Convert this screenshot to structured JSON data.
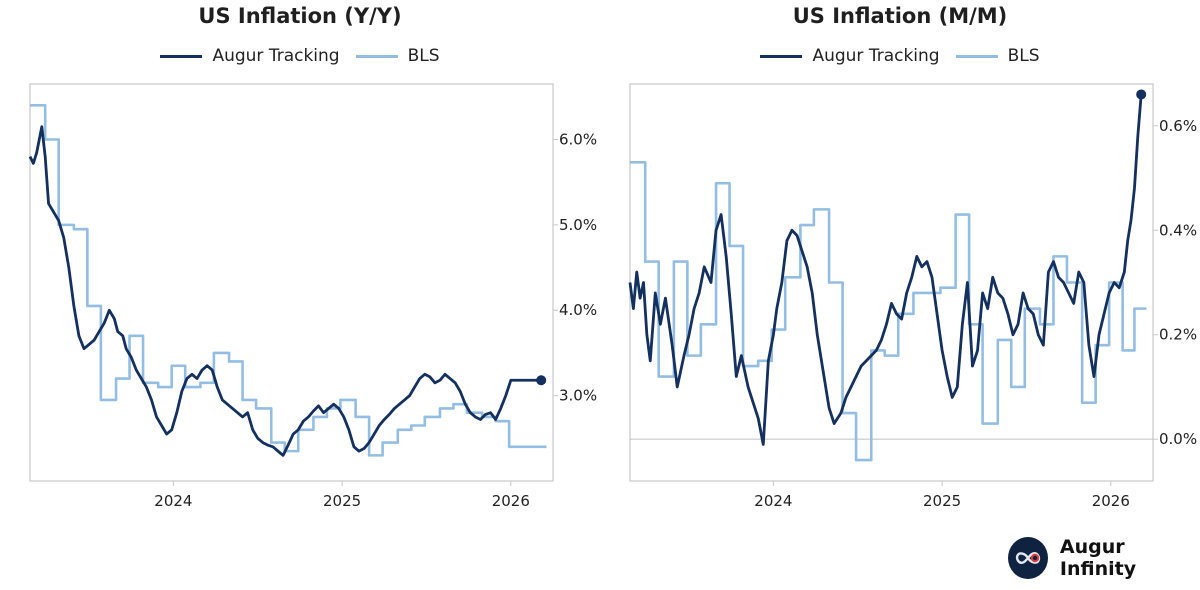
{
  "branding": {
    "name": "Augur Infinity",
    "logo": "infinity-logo-icon"
  },
  "colors": {
    "augur": "#14305e",
    "bls": "#93bde3",
    "axis": "#c8c8c8",
    "zero": "#c8c8c8"
  },
  "chart_data": [
    {
      "type": "line",
      "title": "US Inflation (Y/Y)",
      "legend": [
        "Augur Tracking",
        "BLS"
      ],
      "xlim": [
        2023.15,
        2026.25
      ],
      "ylim": [
        2.0,
        6.65
      ],
      "x_ticks": [
        2024,
        2025,
        2026
      ],
      "x_tick_labels": [
        "2024",
        "2025",
        "2026"
      ],
      "y_ticks": [
        3.0,
        4.0,
        5.0,
        6.0
      ],
      "y_tick_labels": [
        "3.0%",
        "4.0%",
        "5.0%",
        "6.0%"
      ],
      "series": [
        {
          "name": "Augur Tracking",
          "style": "line",
          "x": [
            2023.15,
            2023.17,
            2023.19,
            2023.22,
            2023.24,
            2023.26,
            2023.29,
            2023.32,
            2023.35,
            2023.38,
            2023.41,
            2023.44,
            2023.47,
            2023.5,
            2023.53,
            2023.56,
            2023.59,
            2023.62,
            2023.65,
            2023.67,
            2023.7,
            2023.72,
            2023.75,
            2023.78,
            2023.81,
            2023.84,
            2023.87,
            2023.9,
            2023.93,
            2023.96,
            2023.99,
            2024.02,
            2024.05,
            2024.08,
            2024.11,
            2024.14,
            2024.17,
            2024.2,
            2024.23,
            2024.26,
            2024.29,
            2024.32,
            2024.35,
            2024.38,
            2024.41,
            2024.44,
            2024.47,
            2024.5,
            2024.53,
            2024.56,
            2024.59,
            2024.62,
            2024.65,
            2024.68,
            2024.71,
            2024.74,
            2024.77,
            2024.8,
            2024.83,
            2024.86,
            2024.89,
            2024.92,
            2024.95,
            2024.98,
            2025.01,
            2025.04,
            2025.07,
            2025.1,
            2025.13,
            2025.16,
            2025.19,
            2025.22,
            2025.25,
            2025.28,
            2025.31,
            2025.34,
            2025.37,
            2025.4,
            2025.43,
            2025.46,
            2025.49,
            2025.52,
            2025.55,
            2025.58,
            2025.61,
            2025.64,
            2025.67,
            2025.7,
            2025.73,
            2025.76,
            2025.79,
            2025.82,
            2025.85,
            2025.88,
            2025.91,
            2025.94,
            2025.97,
            2026.0,
            2026.03,
            2026.06,
            2026.09,
            2026.12,
            2026.15,
            2026.18
          ],
          "values": [
            5.8,
            5.72,
            5.85,
            6.15,
            5.8,
            5.25,
            5.15,
            5.05,
            4.85,
            4.5,
            4.05,
            3.7,
            3.55,
            3.6,
            3.65,
            3.75,
            3.85,
            4.0,
            3.9,
            3.75,
            3.7,
            3.55,
            3.45,
            3.3,
            3.2,
            3.1,
            2.95,
            2.75,
            2.65,
            2.55,
            2.6,
            2.8,
            3.05,
            3.2,
            3.25,
            3.2,
            3.3,
            3.35,
            3.3,
            3.1,
            2.95,
            2.9,
            2.85,
            2.8,
            2.75,
            2.8,
            2.6,
            2.5,
            2.45,
            2.42,
            2.4,
            2.35,
            2.3,
            2.42,
            2.55,
            2.6,
            2.7,
            2.75,
            2.82,
            2.88,
            2.8,
            2.85,
            2.9,
            2.85,
            2.75,
            2.6,
            2.4,
            2.35,
            2.38,
            2.45,
            2.55,
            2.65,
            2.72,
            2.78,
            2.85,
            2.9,
            2.95,
            3.0,
            3.1,
            3.2,
            3.25,
            3.22,
            3.15,
            3.18,
            3.25,
            3.2,
            3.15,
            3.05,
            2.9,
            2.8,
            2.75,
            2.72,
            2.78,
            2.8,
            2.72,
            2.85,
            3.0,
            3.18,
            3.18,
            3.18,
            3.18,
            3.18,
            3.18,
            3.18
          ],
          "endpoint": [
            2026.18,
            3.18
          ]
        },
        {
          "name": "BLS",
          "style": "step",
          "x": [
            2023.15,
            2023.24,
            2023.32,
            2023.41,
            2023.49,
            2023.57,
            2023.66,
            2023.74,
            2023.82,
            2023.91,
            2023.99,
            2024.07,
            2024.16,
            2024.24,
            2024.33,
            2024.41,
            2024.49,
            2024.58,
            2024.66,
            2024.74,
            2024.83,
            2024.91,
            2024.99,
            2025.08,
            2025.16,
            2025.24,
            2025.33,
            2025.41,
            2025.49,
            2025.58,
            2025.66,
            2025.74,
            2025.83,
            2025.91,
            2025.99,
            2026.07,
            2026.14
          ],
          "values": [
            6.4,
            6.0,
            5.0,
            4.95,
            4.05,
            2.95,
            3.2,
            3.7,
            3.15,
            3.1,
            3.35,
            3.1,
            3.15,
            3.5,
            3.4,
            2.95,
            2.85,
            2.45,
            2.35,
            2.6,
            2.75,
            2.85,
            2.95,
            2.75,
            2.3,
            2.45,
            2.6,
            2.65,
            2.75,
            2.85,
            2.9,
            2.8,
            2.75,
            2.7,
            2.4,
            2.4,
            2.4
          ]
        }
      ]
    },
    {
      "type": "line",
      "title": "US Inflation (M/M)",
      "legend": [
        "Augur Tracking",
        "BLS"
      ],
      "xlim": [
        2023.15,
        2026.25
      ],
      "ylim": [
        -0.08,
        0.68
      ],
      "x_ticks": [
        2024,
        2025,
        2026
      ],
      "x_tick_labels": [
        "2024",
        "2025",
        "2026"
      ],
      "y_ticks": [
        0.0,
        0.2,
        0.4,
        0.6
      ],
      "y_tick_labels": [
        "0.0%",
        "0.2%",
        "0.4%",
        "0.6%"
      ],
      "zero_line": 0.0,
      "series": [
        {
          "name": "Augur Tracking",
          "style": "line",
          "x": [
            2023.15,
            2023.17,
            2023.19,
            2023.21,
            2023.23,
            2023.25,
            2023.27,
            2023.3,
            2023.33,
            2023.36,
            2023.4,
            2023.43,
            2023.47,
            2023.5,
            2023.53,
            2023.56,
            2023.59,
            2023.63,
            2023.66,
            2023.69,
            2023.72,
            2023.75,
            2023.78,
            2023.81,
            2023.85,
            2023.88,
            2023.91,
            2023.94,
            2023.97,
            2024.0,
            2024.02,
            2024.05,
            2024.08,
            2024.11,
            2024.14,
            2024.17,
            2024.2,
            2024.23,
            2024.26,
            2024.3,
            2024.33,
            2024.36,
            2024.4,
            2024.43,
            2024.46,
            2024.49,
            2024.52,
            2024.55,
            2024.58,
            2024.61,
            2024.64,
            2024.67,
            2024.7,
            2024.73,
            2024.76,
            2024.79,
            2024.82,
            2024.85,
            2024.88,
            2024.91,
            2024.94,
            2024.97,
            2025.0,
            2025.03,
            2025.06,
            2025.09,
            2025.12,
            2025.15,
            2025.18,
            2025.21,
            2025.24,
            2025.27,
            2025.3,
            2025.33,
            2025.36,
            2025.39,
            2025.42,
            2025.45,
            2025.48,
            2025.51,
            2025.54,
            2025.57,
            2025.6,
            2025.63,
            2025.66,
            2025.69,
            2025.72,
            2025.75,
            2025.78,
            2025.81,
            2025.84,
            2025.87,
            2025.9,
            2025.93,
            2025.96,
            2025.99,
            2026.02,
            2026.05,
            2026.08,
            2026.1,
            2026.12,
            2026.14,
            2026.16,
            2026.18
          ],
          "values": [
            0.3,
            0.25,
            0.32,
            0.27,
            0.3,
            0.2,
            0.15,
            0.28,
            0.22,
            0.27,
            0.18,
            0.1,
            0.16,
            0.2,
            0.25,
            0.28,
            0.33,
            0.3,
            0.4,
            0.43,
            0.35,
            0.24,
            0.12,
            0.16,
            0.1,
            0.07,
            0.04,
            -0.01,
            0.15,
            0.2,
            0.25,
            0.3,
            0.38,
            0.4,
            0.39,
            0.36,
            0.33,
            0.28,
            0.2,
            0.12,
            0.06,
            0.03,
            0.05,
            0.08,
            0.1,
            0.12,
            0.14,
            0.15,
            0.16,
            0.17,
            0.19,
            0.22,
            0.26,
            0.24,
            0.23,
            0.28,
            0.31,
            0.35,
            0.33,
            0.34,
            0.31,
            0.24,
            0.17,
            0.12,
            0.08,
            0.1,
            0.22,
            0.3,
            0.14,
            0.17,
            0.28,
            0.25,
            0.31,
            0.28,
            0.27,
            0.24,
            0.2,
            0.22,
            0.28,
            0.25,
            0.24,
            0.2,
            0.18,
            0.32,
            0.34,
            0.31,
            0.3,
            0.28,
            0.26,
            0.32,
            0.3,
            0.18,
            0.12,
            0.2,
            0.24,
            0.28,
            0.3,
            0.29,
            0.32,
            0.38,
            0.42,
            0.48,
            0.58,
            0.66
          ],
          "endpoint": [
            2026.18,
            0.66
          ]
        },
        {
          "name": "BLS",
          "style": "step",
          "x": [
            2023.15,
            2023.24,
            2023.32,
            2023.41,
            2023.49,
            2023.57,
            2023.66,
            2023.74,
            2023.82,
            2023.91,
            2023.99,
            2024.07,
            2024.16,
            2024.24,
            2024.33,
            2024.41,
            2024.49,
            2024.58,
            2024.66,
            2024.74,
            2024.83,
            2024.91,
            2024.99,
            2025.08,
            2025.16,
            2025.24,
            2025.33,
            2025.41,
            2025.49,
            2025.58,
            2025.66,
            2025.74,
            2025.83,
            2025.91,
            2025.99,
            2026.07,
            2026.14
          ],
          "values": [
            0.53,
            0.34,
            0.12,
            0.34,
            0.16,
            0.22,
            0.49,
            0.37,
            0.14,
            0.15,
            0.21,
            0.31,
            0.41,
            0.44,
            0.3,
            0.05,
            -0.04,
            0.17,
            0.16,
            0.24,
            0.28,
            0.28,
            0.29,
            0.43,
            0.22,
            0.03,
            0.19,
            0.1,
            0.25,
            0.22,
            0.35,
            0.3,
            0.07,
            0.18,
            0.3,
            0.17,
            0.25
          ]
        }
      ]
    }
  ]
}
